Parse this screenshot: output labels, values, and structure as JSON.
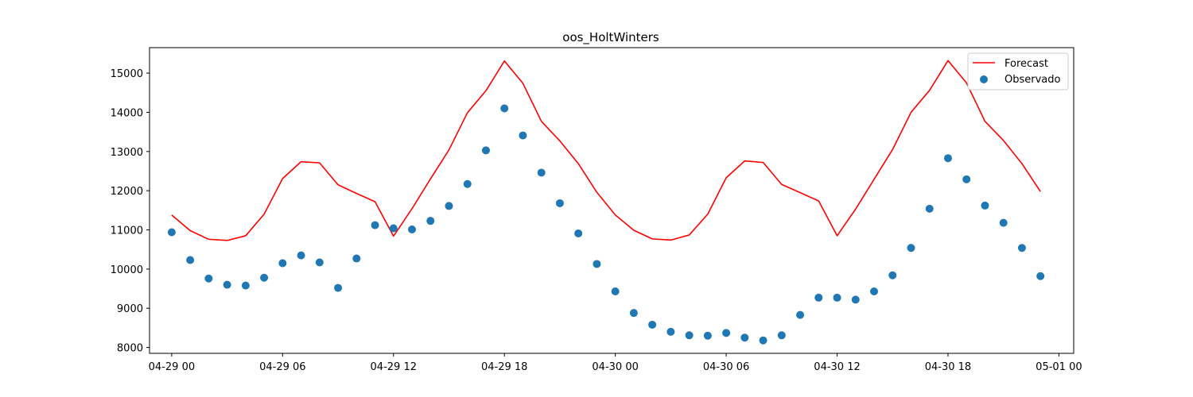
{
  "chart_data": {
    "type": "line",
    "title": "oos_HoltWinters",
    "xlabel": "",
    "ylabel": "",
    "xlim": [
      -1.2,
      48.8
    ],
    "ylim": [
      7850,
      15650
    ],
    "x_ticks": [
      {
        "value": 0,
        "label": "04-29 00"
      },
      {
        "value": 6,
        "label": "04-29 06"
      },
      {
        "value": 12,
        "label": "04-29 12"
      },
      {
        "value": 18,
        "label": "04-29 18"
      },
      {
        "value": 24,
        "label": "04-30 00"
      },
      {
        "value": 30,
        "label": "04-30 06"
      },
      {
        "value": 36,
        "label": "04-30 12"
      },
      {
        "value": 42,
        "label": "04-30 18"
      },
      {
        "value": 48,
        "label": "05-01 00"
      }
    ],
    "y_ticks": [
      8000,
      9000,
      10000,
      11000,
      12000,
      13000,
      14000,
      15000
    ],
    "grid": false,
    "legend_position": "top-right",
    "x": [
      0,
      1,
      2,
      3,
      4,
      5,
      6,
      7,
      8,
      9,
      10,
      11,
      12,
      13,
      14,
      15,
      16,
      17,
      18,
      19,
      20,
      21,
      22,
      23,
      24,
      25,
      26,
      27,
      28,
      29,
      30,
      31,
      32,
      33,
      34,
      35,
      36,
      37,
      38,
      39,
      40,
      41,
      42,
      43,
      44,
      45,
      46,
      47
    ],
    "series": [
      {
        "name": "Forecast",
        "kind": "line",
        "color": "#ff0000",
        "values": [
          11380,
          10980,
          10760,
          10730,
          10850,
          11400,
          12310,
          12740,
          12710,
          12150,
          11930,
          11720,
          10840,
          11540,
          12300,
          13040,
          13990,
          14550,
          15310,
          14740,
          13770,
          13270,
          12690,
          11960,
          11380,
          10990,
          10770,
          10740,
          10870,
          11400,
          12330,
          12760,
          12720,
          12160,
          11950,
          11740,
          10850,
          11530,
          12290,
          13050,
          14000,
          14560,
          15320,
          14750,
          13770,
          13280,
          12690,
          11980
        ]
      },
      {
        "name": "Observado",
        "kind": "scatter",
        "color": "#1f77b4",
        "values": [
          10940,
          10230,
          9760,
          9600,
          9580,
          9780,
          10150,
          10350,
          10170,
          9520,
          10270,
          11120,
          11040,
          11010,
          11230,
          11610,
          12170,
          13030,
          14100,
          13410,
          12460,
          11680,
          10910,
          10130,
          9430,
          8880,
          8580,
          8400,
          8310,
          8300,
          8370,
          8250,
          8180,
          8310,
          8830,
          9270,
          9270,
          9220,
          9430,
          9840,
          10540,
          11540,
          12830,
          12290,
          11620,
          11180,
          10540,
          9820
        ]
      }
    ]
  }
}
